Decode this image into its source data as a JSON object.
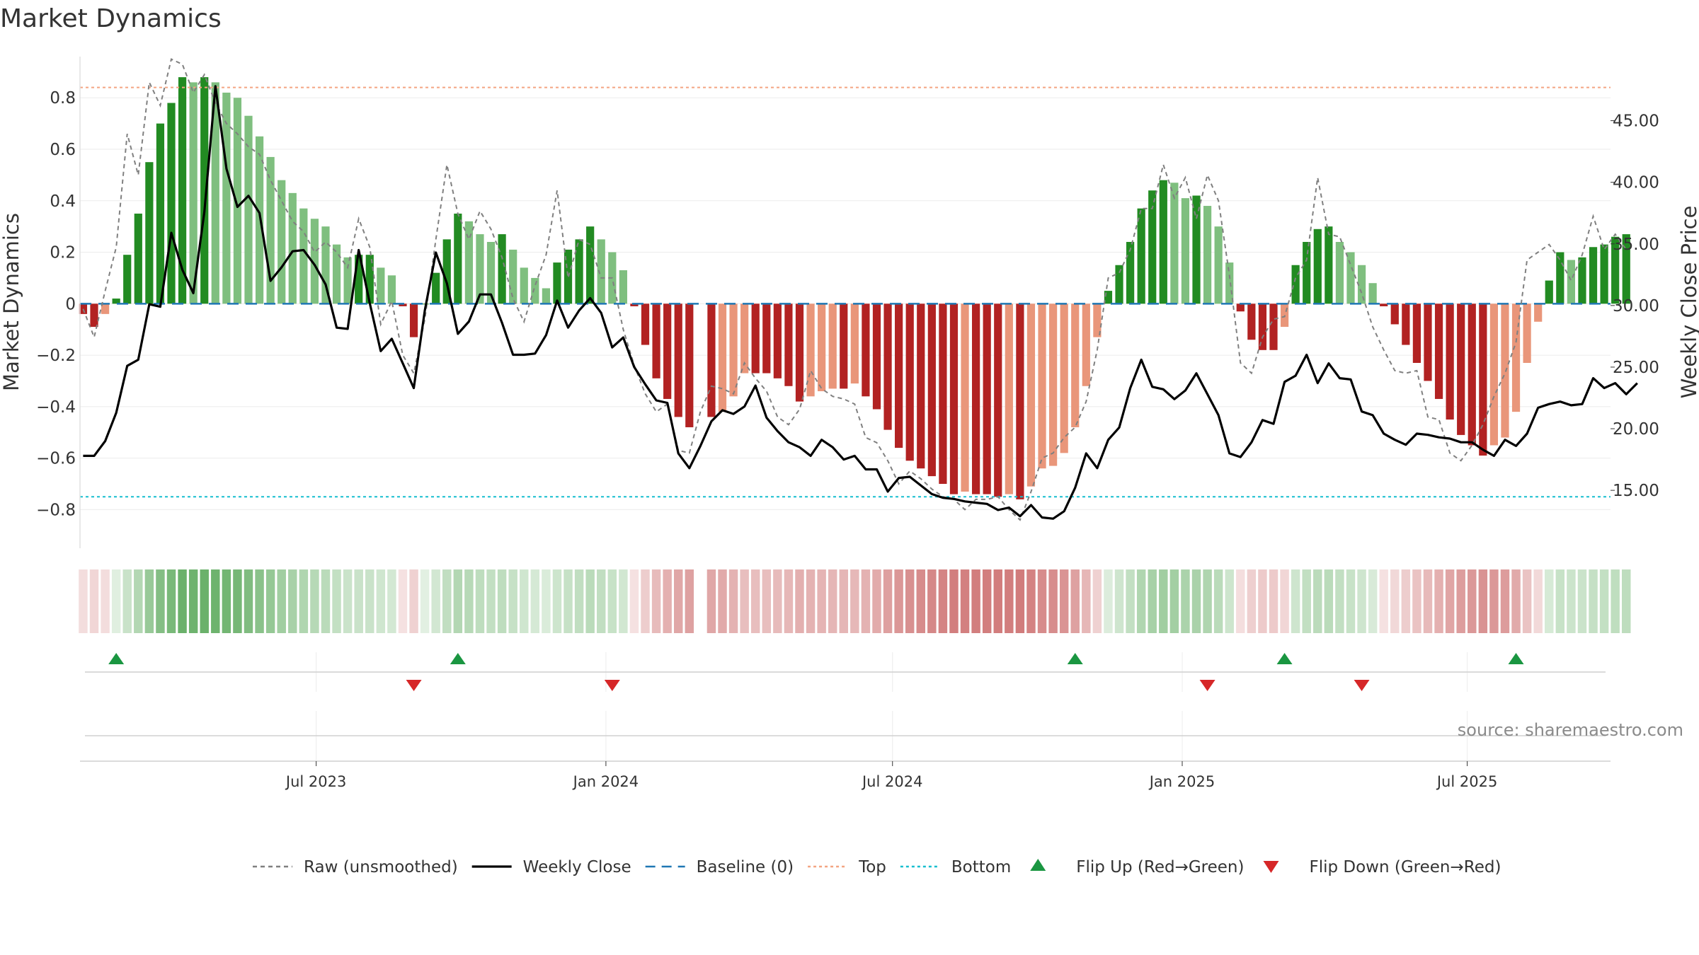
{
  "chart_data": {
    "type": "bar",
    "title": "Market Dynamics",
    "ylabel": "Market Dynamics",
    "y2label": "Weekly Close Price",
    "ylim": [
      -0.95,
      0.96
    ],
    "y2lim": [
      10.3,
      50.2
    ],
    "yticks": [
      0.8,
      0.6,
      0.4,
      0.2,
      0,
      -0.2,
      -0.4,
      -0.6,
      -0.8
    ],
    "ytick_labels": [
      "0.8",
      "0.6",
      "0.4",
      "0.2",
      "0",
      "−0.2",
      "−0.4",
      "−0.6",
      "−0.8"
    ],
    "y2ticks": [
      45,
      40,
      35,
      30,
      25,
      20,
      15
    ],
    "y2tick_labels": [
      "45.00",
      "40.00",
      "35.00",
      "30.00",
      "25.00",
      "20.00",
      "15.00"
    ],
    "x_start": "2023-02-03",
    "x_step_days": 7,
    "xlim": [
      "2023-02-01",
      "2025-09-30"
    ],
    "xticks": [
      "2023-07-01",
      "2024-01-01",
      "2024-07-01",
      "2025-01-01",
      "2025-07-01"
    ],
    "xtick_labels": [
      "Jul 2023",
      "Jan 2024",
      "Jul 2024",
      "Jan 2025",
      "Jul 2025"
    ],
    "top_threshold": 0.84,
    "bottom_threshold": -0.75,
    "baseline": 0,
    "grid": true,
    "legend_position": "bottom-center",
    "colors": {
      "strong_green": "#228b22",
      "light_green": "#7fbf7f",
      "strong_red": "#b22222",
      "light_red": "#e9967a",
      "raw": "#808080",
      "close": "#000000",
      "baseline": "#1f77b4",
      "top": "#f4a582",
      "bottom": "#17becf",
      "flip_up": "#1a9641",
      "flip_down": "#d62728"
    },
    "series": [
      {
        "name": "Market Dynamics",
        "values": [
          -0.04,
          -0.09,
          -0.04,
          0.02,
          0.19,
          0.35,
          0.55,
          0.7,
          0.78,
          0.88,
          0.86,
          0.88,
          0.86,
          0.82,
          0.8,
          0.73,
          0.65,
          0.57,
          0.48,
          0.43,
          0.37,
          0.33,
          0.3,
          0.23,
          0.18,
          0.19,
          0.19,
          0.14,
          0.11,
          -0.01,
          -0.13,
          0.0,
          0.12,
          0.25,
          0.35,
          0.32,
          0.27,
          0.24,
          0.27,
          0.21,
          0.14,
          0.1,
          0.06,
          0.16,
          0.21,
          0.25,
          0.3,
          0.25,
          0.2,
          0.13,
          -0.01,
          -0.16,
          -0.29,
          -0.37,
          -0.44,
          -0.48,
          null,
          -0.44,
          -0.42,
          -0.36,
          -0.27,
          -0.27,
          -0.27,
          -0.29,
          -0.32,
          -0.38,
          -0.36,
          -0.34,
          -0.33,
          -0.33,
          -0.31,
          -0.36,
          -0.41,
          -0.49,
          -0.56,
          -0.61,
          -0.64,
          -0.67,
          -0.7,
          -0.74,
          -0.73,
          -0.74,
          -0.74,
          -0.75,
          -0.74,
          -0.76,
          -0.71,
          -0.64,
          -0.63,
          -0.58,
          -0.48,
          -0.32,
          -0.13,
          0.05,
          0.15,
          0.24,
          0.37,
          0.44,
          0.48,
          0.47,
          0.41,
          0.42,
          0.38,
          0.3,
          0.16,
          -0.03,
          -0.14,
          -0.18,
          -0.18,
          -0.09,
          0.15,
          0.24,
          0.29,
          0.3,
          0.24,
          0.2,
          0.15,
          0.08,
          -0.01,
          -0.08,
          -0.16,
          -0.23,
          -0.3,
          -0.37,
          -0.45,
          -0.51,
          -0.55,
          -0.59,
          -0.55,
          -0.52,
          -0.42,
          -0.23,
          -0.07,
          0.09,
          0.2,
          0.17,
          0.18,
          0.22,
          0.23,
          0.26,
          0.27
        ]
      },
      {
        "name": "Raw (unsmoothed)",
        "values": [
          -0.02,
          -0.13,
          0.05,
          0.22,
          0.66,
          0.5,
          0.86,
          0.77,
          0.95,
          0.93,
          0.82,
          0.89,
          0.78,
          0.7,
          0.66,
          0.61,
          0.58,
          0.48,
          0.4,
          0.32,
          0.28,
          0.2,
          0.24,
          0.2,
          0.14,
          0.33,
          0.22,
          -0.08,
          0.01,
          -0.2,
          -0.27,
          -0.06,
          0.25,
          0.54,
          0.35,
          0.25,
          0.36,
          0.29,
          0.18,
          0.02,
          -0.07,
          0.07,
          0.19,
          0.44,
          0.1,
          0.25,
          0.23,
          0.1,
          0.1,
          -0.1,
          -0.24,
          -0.35,
          -0.42,
          -0.39,
          -0.57,
          -0.58,
          -0.42,
          -0.32,
          -0.33,
          -0.35,
          -0.23,
          -0.29,
          -0.34,
          -0.44,
          -0.47,
          -0.41,
          -0.26,
          -0.33,
          -0.36,
          -0.37,
          -0.39,
          -0.52,
          -0.54,
          -0.61,
          -0.7,
          -0.65,
          -0.68,
          -0.72,
          -0.75,
          -0.76,
          -0.8,
          -0.76,
          -0.76,
          -0.75,
          -0.8,
          -0.84,
          -0.73,
          -0.6,
          -0.58,
          -0.52,
          -0.48,
          -0.38,
          -0.18,
          0.1,
          0.12,
          0.21,
          0.37,
          0.37,
          0.54,
          0.41,
          0.49,
          0.33,
          0.5,
          0.4,
          0.11,
          -0.23,
          -0.27,
          -0.13,
          -0.06,
          -0.05,
          0.1,
          0.17,
          0.49,
          0.27,
          0.26,
          0.15,
          0.04,
          -0.09,
          -0.18,
          -0.26,
          -0.27,
          -0.26,
          -0.44,
          -0.45,
          -0.58,
          -0.61,
          -0.55,
          -0.47,
          -0.36,
          -0.27,
          -0.15,
          0.17,
          0.2,
          0.23,
          0.17,
          0.09,
          0.19,
          0.34,
          0.21,
          0.27,
          0.21
        ]
      },
      {
        "name": "Weekly Close",
        "values": [
          17.8,
          17.8,
          19,
          21.3,
          25.1,
          25.6,
          30.1,
          29.9,
          35.9,
          32.9,
          31.0,
          37.6,
          47.8,
          41.1,
          38.0,
          38.9,
          37.5,
          32.0,
          33.1,
          34.4,
          34.5,
          33.3,
          31.7,
          28.2,
          28.1,
          34.5,
          30.2,
          26.3,
          27.3,
          25.3,
          23.3,
          29.6,
          34.3,
          31.8,
          27.7,
          28.7,
          30.9,
          30.9,
          28.6,
          26.0,
          26.0,
          26.1,
          27.6,
          30.4,
          28.2,
          29.6,
          30.6,
          29.4,
          26.6,
          27.4,
          25.0,
          23.6,
          22.3,
          22.1,
          18.0,
          16.8,
          18.6,
          20.6,
          21.5,
          21.2,
          21.8,
          23.5,
          20.9,
          19.8,
          18.9,
          18.5,
          17.8,
          19.1,
          18.5,
          17.5,
          17.8,
          16.7,
          16.7,
          14.9,
          16.0,
          16.1,
          15.4,
          14.7,
          14.4,
          14.3,
          14.1,
          14.0,
          13.9,
          13.4,
          13.6,
          12.9,
          13.8,
          12.8,
          12.7,
          13.3,
          15.2,
          18.0,
          16.8,
          19.1,
          20.1,
          23.3,
          25.6,
          23.4,
          23.2,
          22.4,
          23.1,
          24.5,
          22.8,
          21.1,
          18.0,
          17.7,
          18.9,
          20.7,
          20.4,
          23.8,
          24.3,
          26.0,
          23.7,
          25.3,
          24.1,
          24.0,
          21.4,
          21.1,
          19.6,
          19.1,
          18.7,
          19.6,
          19.5,
          19.3,
          19.2,
          18.9,
          18.9,
          18.3,
          17.8,
          19.1,
          18.6,
          19.6,
          21.7,
          22.0,
          22.2,
          21.9,
          22.0,
          24.1,
          23.3,
          23.7,
          22.8,
          23.7
        ]
      }
    ],
    "flips_up": [
      "2023-02-24",
      "2023-09-29",
      "2024-10-25",
      "2025-03-07",
      "2025-08-01"
    ],
    "flips_down": [
      "2023-09-01",
      "2024-01-05",
      "2025-01-17",
      "2025-04-25"
    ],
    "legend": [
      {
        "label": "Raw (unsmoothed)",
        "style": "dashed",
        "color": "#808080"
      },
      {
        "label": "Weekly Close",
        "style": "solid",
        "color": "#000000"
      },
      {
        "label": "Baseline (0)",
        "style": "dashed",
        "color": "#1f77b4"
      },
      {
        "label": "Top",
        "style": "dotted",
        "color": "#f4a582"
      },
      {
        "label": "Bottom",
        "style": "dotted",
        "color": "#17becf"
      },
      {
        "label": "Flip Up (Red→Green)",
        "style": "triangle-up",
        "color": "#1a9641"
      },
      {
        "label": "Flip Down (Green→Red)",
        "style": "triangle-down",
        "color": "#d62728"
      }
    ],
    "source": "source: sharemaestro.com"
  }
}
